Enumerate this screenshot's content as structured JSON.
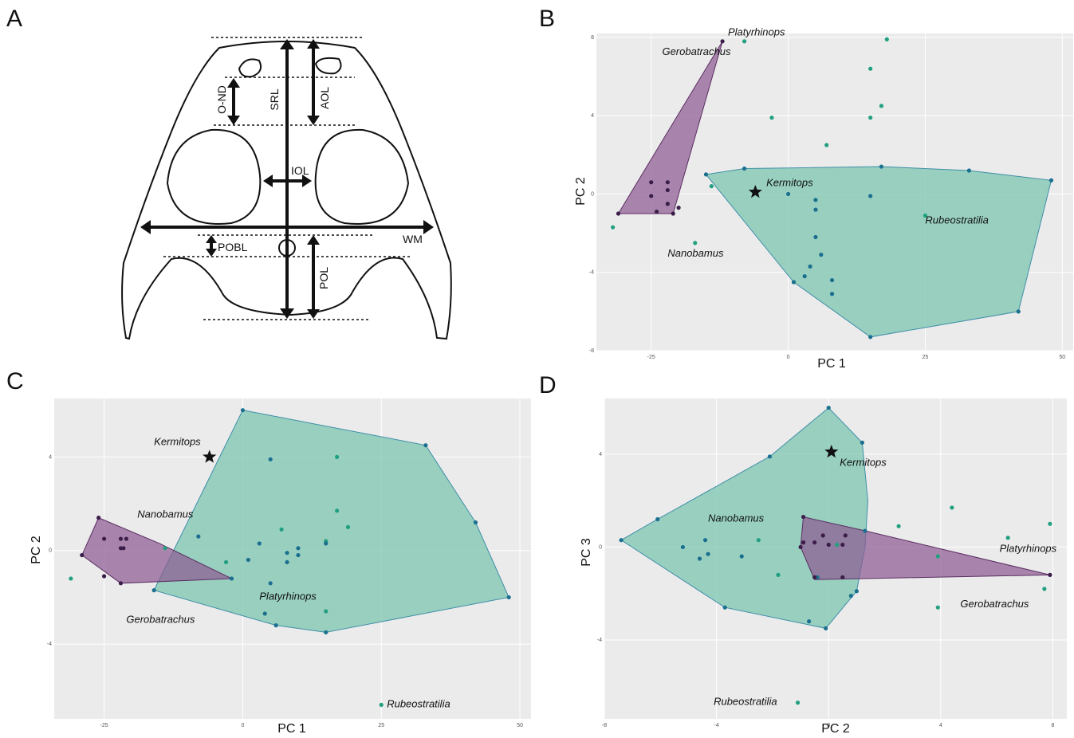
{
  "figure": {
    "panel_letters": [
      "A",
      "B",
      "C",
      "D"
    ],
    "colors": {
      "group1_fill": "#8e5b93",
      "group1_point": "#3b1d4a",
      "group2_fill": "#77c3ad",
      "group2_point_a": "#1b6f8f",
      "group2_point_b": "#21a07f",
      "panel_bg": "#ebebeb",
      "grid": "#ffffff"
    }
  },
  "diagram": {
    "measurements": [
      "O-ND",
      "SRL",
      "AOL",
      "IOL",
      "WM",
      "POBL",
      "POL"
    ]
  },
  "chart_data": [
    {
      "panel": "B",
      "type": "scatter",
      "xlabel": "PC 1",
      "ylabel": "PC 2",
      "xlim": [
        -35,
        52
      ],
      "ylim": [
        -8,
        8.2
      ],
      "xticks": [
        "-25",
        "0",
        "25",
        "50"
      ],
      "xtick_values": [
        -25,
        0,
        25,
        50
      ],
      "yticks": [
        "8",
        "4",
        "0",
        "-4",
        "-8"
      ],
      "ytick_values": [
        8,
        4,
        0,
        -4,
        -8
      ],
      "hull1": [
        [
          -31,
          -1
        ],
        [
          -12,
          7.8
        ],
        [
          -21,
          -1
        ]
      ],
      "hull2": [
        [
          -15,
          1
        ],
        [
          -8,
          1.3
        ],
        [
          17,
          1.4
        ],
        [
          33,
          1.2
        ],
        [
          48,
          0.7
        ],
        [
          42,
          -6
        ],
        [
          15,
          -7.3
        ],
        [
          1,
          -4.5
        ]
      ],
      "points1": [
        [
          -31,
          -1
        ],
        [
          -25,
          0.6
        ],
        [
          -25,
          -0.1
        ],
        [
          -24,
          -0.9
        ],
        [
          -21,
          -1
        ],
        [
          -20,
          -0.7
        ],
        [
          -22,
          0.6
        ],
        [
          -22,
          0.2
        ],
        [
          -22,
          -0.5
        ],
        [
          -12,
          7.8
        ]
      ],
      "points2a": [
        [
          -15,
          1
        ],
        [
          -8,
          1.3
        ],
        [
          17,
          1.4
        ],
        [
          33,
          1.2
        ],
        [
          48,
          0.7
        ],
        [
          42,
          -6
        ],
        [
          15,
          -7.3
        ],
        [
          1,
          -4.5
        ],
        [
          0,
          0
        ],
        [
          5,
          -0.3
        ],
        [
          5,
          -0.8
        ],
        [
          15,
          -0.1
        ],
        [
          5,
          -2.2
        ],
        [
          6,
          -3.1
        ],
        [
          4,
          -3.7
        ],
        [
          3,
          -4.2
        ],
        [
          8,
          -4.4
        ],
        [
          8,
          -5.1
        ]
      ],
      "points2b": [
        [
          -8,
          7.8
        ],
        [
          18,
          7.9
        ],
        [
          15,
          6.4
        ],
        [
          17,
          4.5
        ],
        [
          15,
          3.9
        ],
        [
          -3,
          3.9
        ],
        [
          7,
          2.5
        ],
        [
          -14,
          0.4
        ],
        [
          25,
          -1.1
        ],
        [
          -32,
          -1.7
        ],
        [
          -17,
          -2.5
        ]
      ],
      "star": [
        -6,
        0.1
      ],
      "labels": [
        {
          "text": "Platyrhinops",
          "x": -11,
          "y": 8.1
        },
        {
          "text": "Gerobatrachus",
          "x": -23,
          "y": 7.1
        },
        {
          "text": "Kermitops",
          "x": -4,
          "y": 0.4
        },
        {
          "text": "Rubeostratilia",
          "x": 25,
          "y": -1.5
        },
        {
          "text": "Nanobamus",
          "x": -22,
          "y": -3.2
        }
      ]
    },
    {
      "panel": "C",
      "type": "scatter",
      "xlabel": "PC 1",
      "ylabel": "PC 2",
      "xlim": [
        -34,
        52
      ],
      "ylim": [
        -7.2,
        6.5
      ],
      "xticks": [
        "-25",
        "0",
        "25",
        "50"
      ],
      "xtick_values": [
        -25,
        0,
        25,
        50
      ],
      "yticks": [
        "4",
        "0",
        "-4"
      ],
      "ytick_values": [
        4,
        0,
        -4
      ],
      "hull1": [
        [
          -26,
          1.4
        ],
        [
          -15,
          0.3
        ],
        [
          -2,
          -1.2
        ],
        [
          -22,
          -1.4
        ],
        [
          -29,
          -0.2
        ]
      ],
      "hull2": [
        [
          0,
          6
        ],
        [
          33,
          4.5
        ],
        [
          42,
          1.2
        ],
        [
          48,
          -2
        ],
        [
          15,
          -3.5
        ],
        [
          6,
          -3.2
        ],
        [
          -16,
          -1.7
        ]
      ],
      "points1": [
        [
          -26,
          1.4
        ],
        [
          -25,
          0.5
        ],
        [
          -22,
          0.5
        ],
        [
          -21,
          0.5
        ],
        [
          -22,
          0.1
        ],
        [
          -21.5,
          0.1
        ],
        [
          -29,
          -0.2
        ],
        [
          -25,
          -1.1
        ],
        [
          -22,
          -1.4
        ]
      ],
      "points2a": [
        [
          0,
          6
        ],
        [
          33,
          4.5
        ],
        [
          42,
          1.2
        ],
        [
          48,
          -2
        ],
        [
          15,
          -3.5
        ],
        [
          6,
          -3.2
        ],
        [
          -16,
          -1.7
        ],
        [
          -2,
          -1.2
        ],
        [
          5,
          3.9
        ],
        [
          -8,
          0.6
        ],
        [
          3,
          0.3
        ],
        [
          8,
          -0.1
        ],
        [
          10,
          0.1
        ],
        [
          10,
          -0.2
        ],
        [
          8,
          -0.5
        ],
        [
          5,
          -1.4
        ],
        [
          1,
          -0.4
        ],
        [
          15,
          0.3
        ],
        [
          4,
          -2.7
        ]
      ],
      "points2b": [
        [
          17,
          4
        ],
        [
          17,
          1.7
        ],
        [
          19,
          1
        ],
        [
          7,
          0.9
        ],
        [
          -14,
          0.1
        ],
        [
          -3,
          -0.5
        ],
        [
          15,
          0.4
        ],
        [
          15,
          -2.6
        ],
        [
          -31,
          -1.2
        ],
        [
          25,
          -6.6
        ]
      ],
      "star": [
        -6,
        4
      ],
      "labels": [
        {
          "text": "Kermitops",
          "x": -16,
          "y": 4.5
        },
        {
          "text": "Nanobamus",
          "x": -19,
          "y": 1.4
        },
        {
          "text": "Platyrhinops",
          "x": 3,
          "y": -2.1
        },
        {
          "text": "Gerobatrachus",
          "x": -21,
          "y": -3.1
        },
        {
          "text": "Rubeostratilia",
          "x": 26,
          "y": -6.7
        }
      ]
    },
    {
      "panel": "D",
      "type": "scatter",
      "xlabel": "PC 2",
      "ylabel": "PC 3",
      "xlim": [
        -8,
        8.5
      ],
      "ylim": [
        -7.4,
        6.4
      ],
      "xticks": [
        "-8",
        "-4",
        "0",
        "4",
        "8"
      ],
      "xtick_values": [
        -8,
        -4,
        0,
        4,
        8
      ],
      "yticks": [
        "4",
        "0",
        "-4"
      ],
      "ytick_values": [
        4,
        0,
        -4
      ],
      "hull1": [
        [
          -0.9,
          1.3
        ],
        [
          1.3,
          0.7
        ],
        [
          7.9,
          -1.2
        ],
        [
          -0.5,
          -1.4
        ],
        [
          -1,
          0
        ]
      ],
      "hull2": [
        [
          -7.4,
          0.3
        ],
        [
          -6.1,
          1.2
        ],
        [
          -2.1,
          3.9
        ],
        [
          0,
          6
        ],
        [
          1.2,
          4.5
        ],
        [
          1.4,
          2
        ],
        [
          1.3,
          0
        ],
        [
          1,
          -1.9
        ],
        [
          -0.1,
          -3.5
        ],
        [
          -3.7,
          -2.6
        ]
      ],
      "points1": [
        [
          -0.9,
          1.3
        ],
        [
          -0.9,
          0.2
        ],
        [
          -0.5,
          0.2
        ],
        [
          -0.2,
          0.5
        ],
        [
          0,
          0.1
        ],
        [
          0.5,
          0.1
        ],
        [
          0.6,
          0.5
        ],
        [
          -1,
          0
        ],
        [
          0.5,
          -1.3
        ],
        [
          -0.5,
          -1.3
        ],
        [
          7.9,
          -1.2
        ]
      ],
      "points2a": [
        [
          -6.1,
          1.2
        ],
        [
          -2.1,
          3.9
        ],
        [
          0,
          6
        ],
        [
          1.2,
          4.5
        ],
        [
          -7.4,
          0.3
        ],
        [
          -5.2,
          0
        ],
        [
          -4.4,
          0.3
        ],
        [
          -4.6,
          -0.5
        ],
        [
          -4.3,
          -0.3
        ],
        [
          -3.1,
          -0.4
        ],
        [
          1.3,
          0.7
        ],
        [
          1,
          -1.9
        ],
        [
          -0.1,
          -3.5
        ],
        [
          -0.7,
          -3.2
        ],
        [
          -3.7,
          -2.6
        ],
        [
          -0.4,
          -1.3
        ],
        [
          0.8,
          -2.1
        ]
      ],
      "points2b": [
        [
          4.4,
          1.7
        ],
        [
          7.9,
          1
        ],
        [
          6.4,
          0.4
        ],
        [
          2.5,
          0.9
        ],
        [
          0.3,
          0.1
        ],
        [
          -2.5,
          0.3
        ],
        [
          -1.8,
          -1.2
        ],
        [
          3.9,
          -0.4
        ],
        [
          3.9,
          -2.6
        ],
        [
          -1.1,
          -6.7
        ],
        [
          7.7,
          -1.8
        ]
      ],
      "star": [
        0.1,
        4.1
      ],
      "labels": [
        {
          "text": "Kermitops",
          "x": 0.4,
          "y": 3.5
        },
        {
          "text": "Nanobamus",
          "x": -4.3,
          "y": 1.1
        },
        {
          "text": "Platyrhinops",
          "x": 6.1,
          "y": -0.2
        },
        {
          "text": "Gerobatrachus",
          "x": 4.7,
          "y": -2.6
        },
        {
          "text": "Rubeostratilia",
          "x": -4.1,
          "y": -6.8
        }
      ]
    }
  ]
}
